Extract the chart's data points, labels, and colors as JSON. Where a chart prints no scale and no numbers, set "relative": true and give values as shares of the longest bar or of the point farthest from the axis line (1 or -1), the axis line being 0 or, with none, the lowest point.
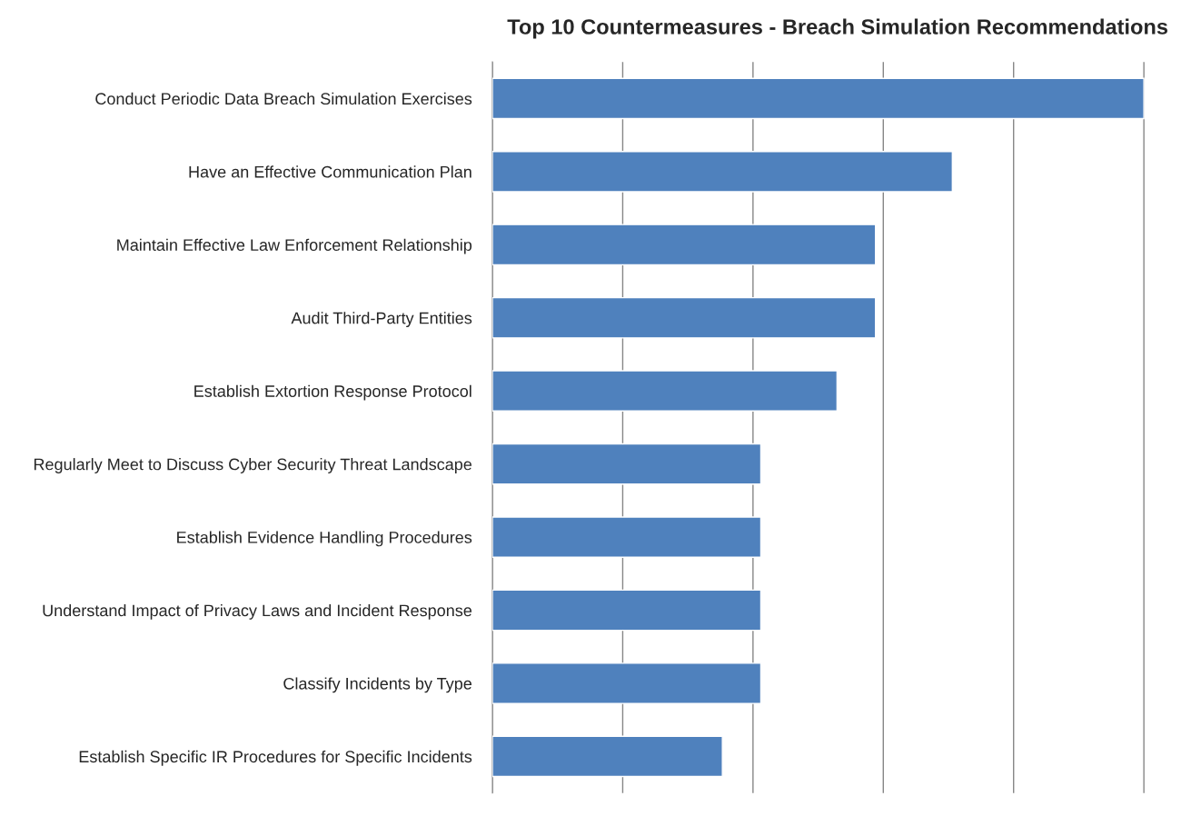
{
  "chart_data": {
    "type": "bar",
    "orientation": "horizontal",
    "relative": true,
    "title": "Top 10 Countermeasures - Breach Simulation Recommendations",
    "categories": [
      "Conduct Periodic Data Breach Simulation Exercises",
      "Have an Effective Communication Plan",
      "Maintain Effective Law Enforcement Relationship",
      "Audit Third-Party Entities",
      "Establish Extortion Response Protocol",
      "Regularly Meet to Discuss Cyber Security Threat Landscape",
      "Establish Evidence Handling Procedures",
      "Understand Impact of Privacy Laws and Incident Response",
      "Classify Incidents by Type",
      "Establish Specific IR Procedures for Specific Incidents"
    ],
    "values": [
      1,
      0.706,
      0.588,
      0.588,
      0.529,
      0.412,
      0.412,
      0.412,
      0.412,
      0.353
    ],
    "color": "#4f81bd",
    "grid": "x",
    "legend": false
  }
}
